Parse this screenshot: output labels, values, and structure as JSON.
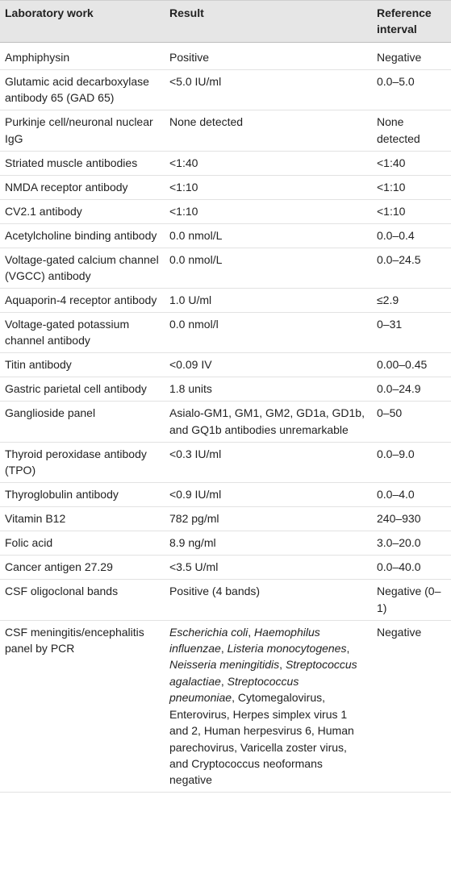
{
  "table": {
    "header": [
      "Laboratory work",
      "Result",
      "Reference interval"
    ],
    "rows": [
      [
        "Amphiphysin",
        "Positive",
        "Negative"
      ],
      [
        "Glutamic acid decarboxylase antibody 65 (GAD 65)",
        "<5.0 IU/ml",
        "0.0–5.0"
      ],
      [
        "Purkinje cell/neuronal nuclear IgG",
        "None detected",
        "None detected"
      ],
      [
        "Striated muscle antibodies",
        "<1:40",
        "<1:40"
      ],
      [
        "NMDA receptor antibody",
        "<1:10",
        "<1:10"
      ],
      [
        "CV2.1 antibody",
        "<1:10",
        "<1:10"
      ],
      [
        "Acetylcholine binding antibody",
        "0.0 nmol/L",
        "0.0–0.4"
      ],
      [
        "Voltage-gated calcium channel (VGCC) antibody",
        "0.0 nmol/L",
        "0.0–24.5"
      ],
      [
        "Aquaporin-4 receptor antibody",
        "1.0 U/ml",
        "≤2.9"
      ],
      [
        "Voltage-gated potassium channel antibody",
        "0.0 nmol/l",
        "0–31"
      ],
      [
        "Titin antibody",
        "<0.09 IV",
        "0.00–0.45"
      ],
      [
        "Gastric parietal cell antibody",
        "1.8 units",
        "0.0–24.9"
      ],
      [
        "Ganglioside panel",
        "Asialo-GM1, GM1, GM2, GD1a, GD1b, and GQ1b antibodies unremarkable",
        "0–50"
      ],
      [
        "Thyroid peroxidase antibody (TPO)",
        "<0.3 IU/ml",
        "0.0–9.0"
      ],
      [
        "Thyroglobulin antibody",
        "<0.9 IU/ml",
        "0.0–4.0"
      ],
      [
        "Vitamin B12",
        "782 pg/ml",
        "240–930"
      ],
      [
        "Folic acid",
        "8.9 ng/ml",
        "3.0–20.0"
      ],
      [
        "Cancer antigen 27.29",
        "<3.5 U/ml",
        "0.0–40.0"
      ],
      [
        "CSF oligoclonal bands",
        "Positive (4 bands)",
        "Negative (0–1)"
      ],
      [
        "CSF meningitis/encephalitis panel by PCR",
        [
          {
            "text": "Escherichia coli",
            "italic": true
          },
          {
            "text": ", ",
            "italic": false
          },
          {
            "text": "Haemophilus influenzae",
            "italic": true
          },
          {
            "text": ", ",
            "italic": false
          },
          {
            "text": "Listeria monocytogenes",
            "italic": true
          },
          {
            "text": ", ",
            "italic": false
          },
          {
            "text": "Neisseria meningitidis",
            "italic": true
          },
          {
            "text": ", ",
            "italic": false
          },
          {
            "text": "Streptococcus agalactiae",
            "italic": true
          },
          {
            "text": ", ",
            "italic": false
          },
          {
            "text": "Streptococcus pneumoniae",
            "italic": true
          },
          {
            "text": ", Cytomegalovirus, Enterovirus, Herpes simplex virus 1 and 2, Human herpesvirus 6, Human parechovirus, Varicella zoster virus, and Cryptococcus neoformans negative",
            "italic": false
          }
        ],
        "Negative"
      ]
    ]
  }
}
